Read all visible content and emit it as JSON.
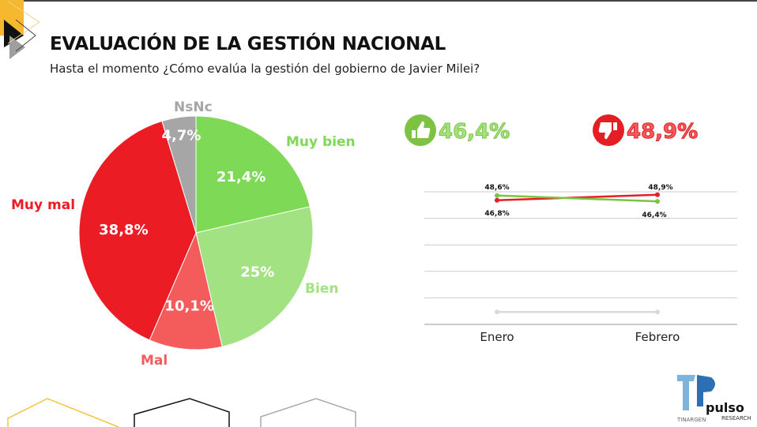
{
  "header": {
    "title": "EVALUACIÓN DE LA GESTIÓN NACIONAL",
    "subtitle": "Hasta el momento ¿Cómo evalúa la gestión del gobierno de Javier Milei?"
  },
  "chart_data": [
    {
      "type": "pie",
      "start": "top",
      "direction": "clockwise",
      "slices": [
        {
          "label": "Muy bien",
          "value": 21.4,
          "display": "21,4%",
          "color": "#7ed957"
        },
        {
          "label": "Bien",
          "value": 25,
          "display": "25%",
          "color": "#a3e283"
        },
        {
          "label": "Mal",
          "value": 10.1,
          "display": "10,1%",
          "color": "#f45b5b"
        },
        {
          "label": "Muy mal",
          "value": 38.8,
          "display": "38,8%",
          "color": "#ec1c24"
        },
        {
          "label": "NsNc",
          "value": 4.7,
          "display": "4,7%",
          "color": "#a6a6a6"
        }
      ]
    },
    {
      "type": "line",
      "categories": [
        "Enero",
        "Febrero"
      ],
      "ylim": [
        0,
        50
      ],
      "grid": true,
      "series": [
        {
          "color": "#7dc242",
          "values": [
            48.6,
            46.4
          ],
          "labels": [
            "48,6%",
            "46,4%"
          ]
        },
        {
          "color": "#e31e24",
          "values": [
            46.8,
            48.9
          ],
          "labels": [
            "46,8%",
            "48,9%"
          ]
        },
        {
          "color": "#d9d9d9",
          "values": [
            4.7,
            4.7
          ]
        }
      ]
    }
  ],
  "kpis": {
    "positive": {
      "value": "46,4%",
      "icon": "thumbs-up-icon",
      "color": "#7dc242"
    },
    "negative": {
      "value": "48,9%",
      "icon": "thumbs-down-icon",
      "color": "#e31e24"
    }
  },
  "logos": {
    "tinargen": "TINARGEN",
    "pulso": "pulso",
    "research": "RESEARCH"
  }
}
